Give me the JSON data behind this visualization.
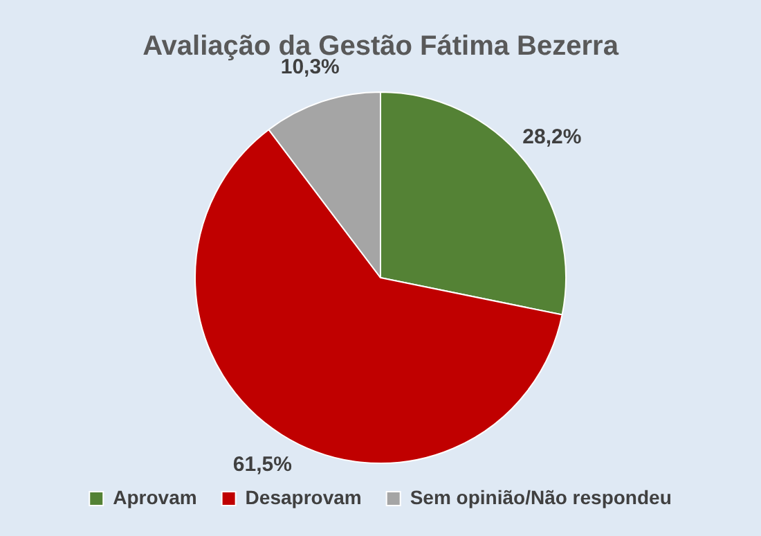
{
  "chart_data": {
    "type": "pie",
    "title": "Avaliação da Gestão Fátima Bezerra",
    "categories": [
      "Aprovam",
      "Desaprovam",
      "Sem opinião/Não respondeu"
    ],
    "values": [
      28.2,
      61.5,
      10.3
    ],
    "colors": [
      "#548235",
      "#c00000",
      "#a5a5a5"
    ],
    "value_labels": [
      "28,2%",
      "61,5%",
      "10,3%"
    ],
    "legend": "bottom"
  }
}
